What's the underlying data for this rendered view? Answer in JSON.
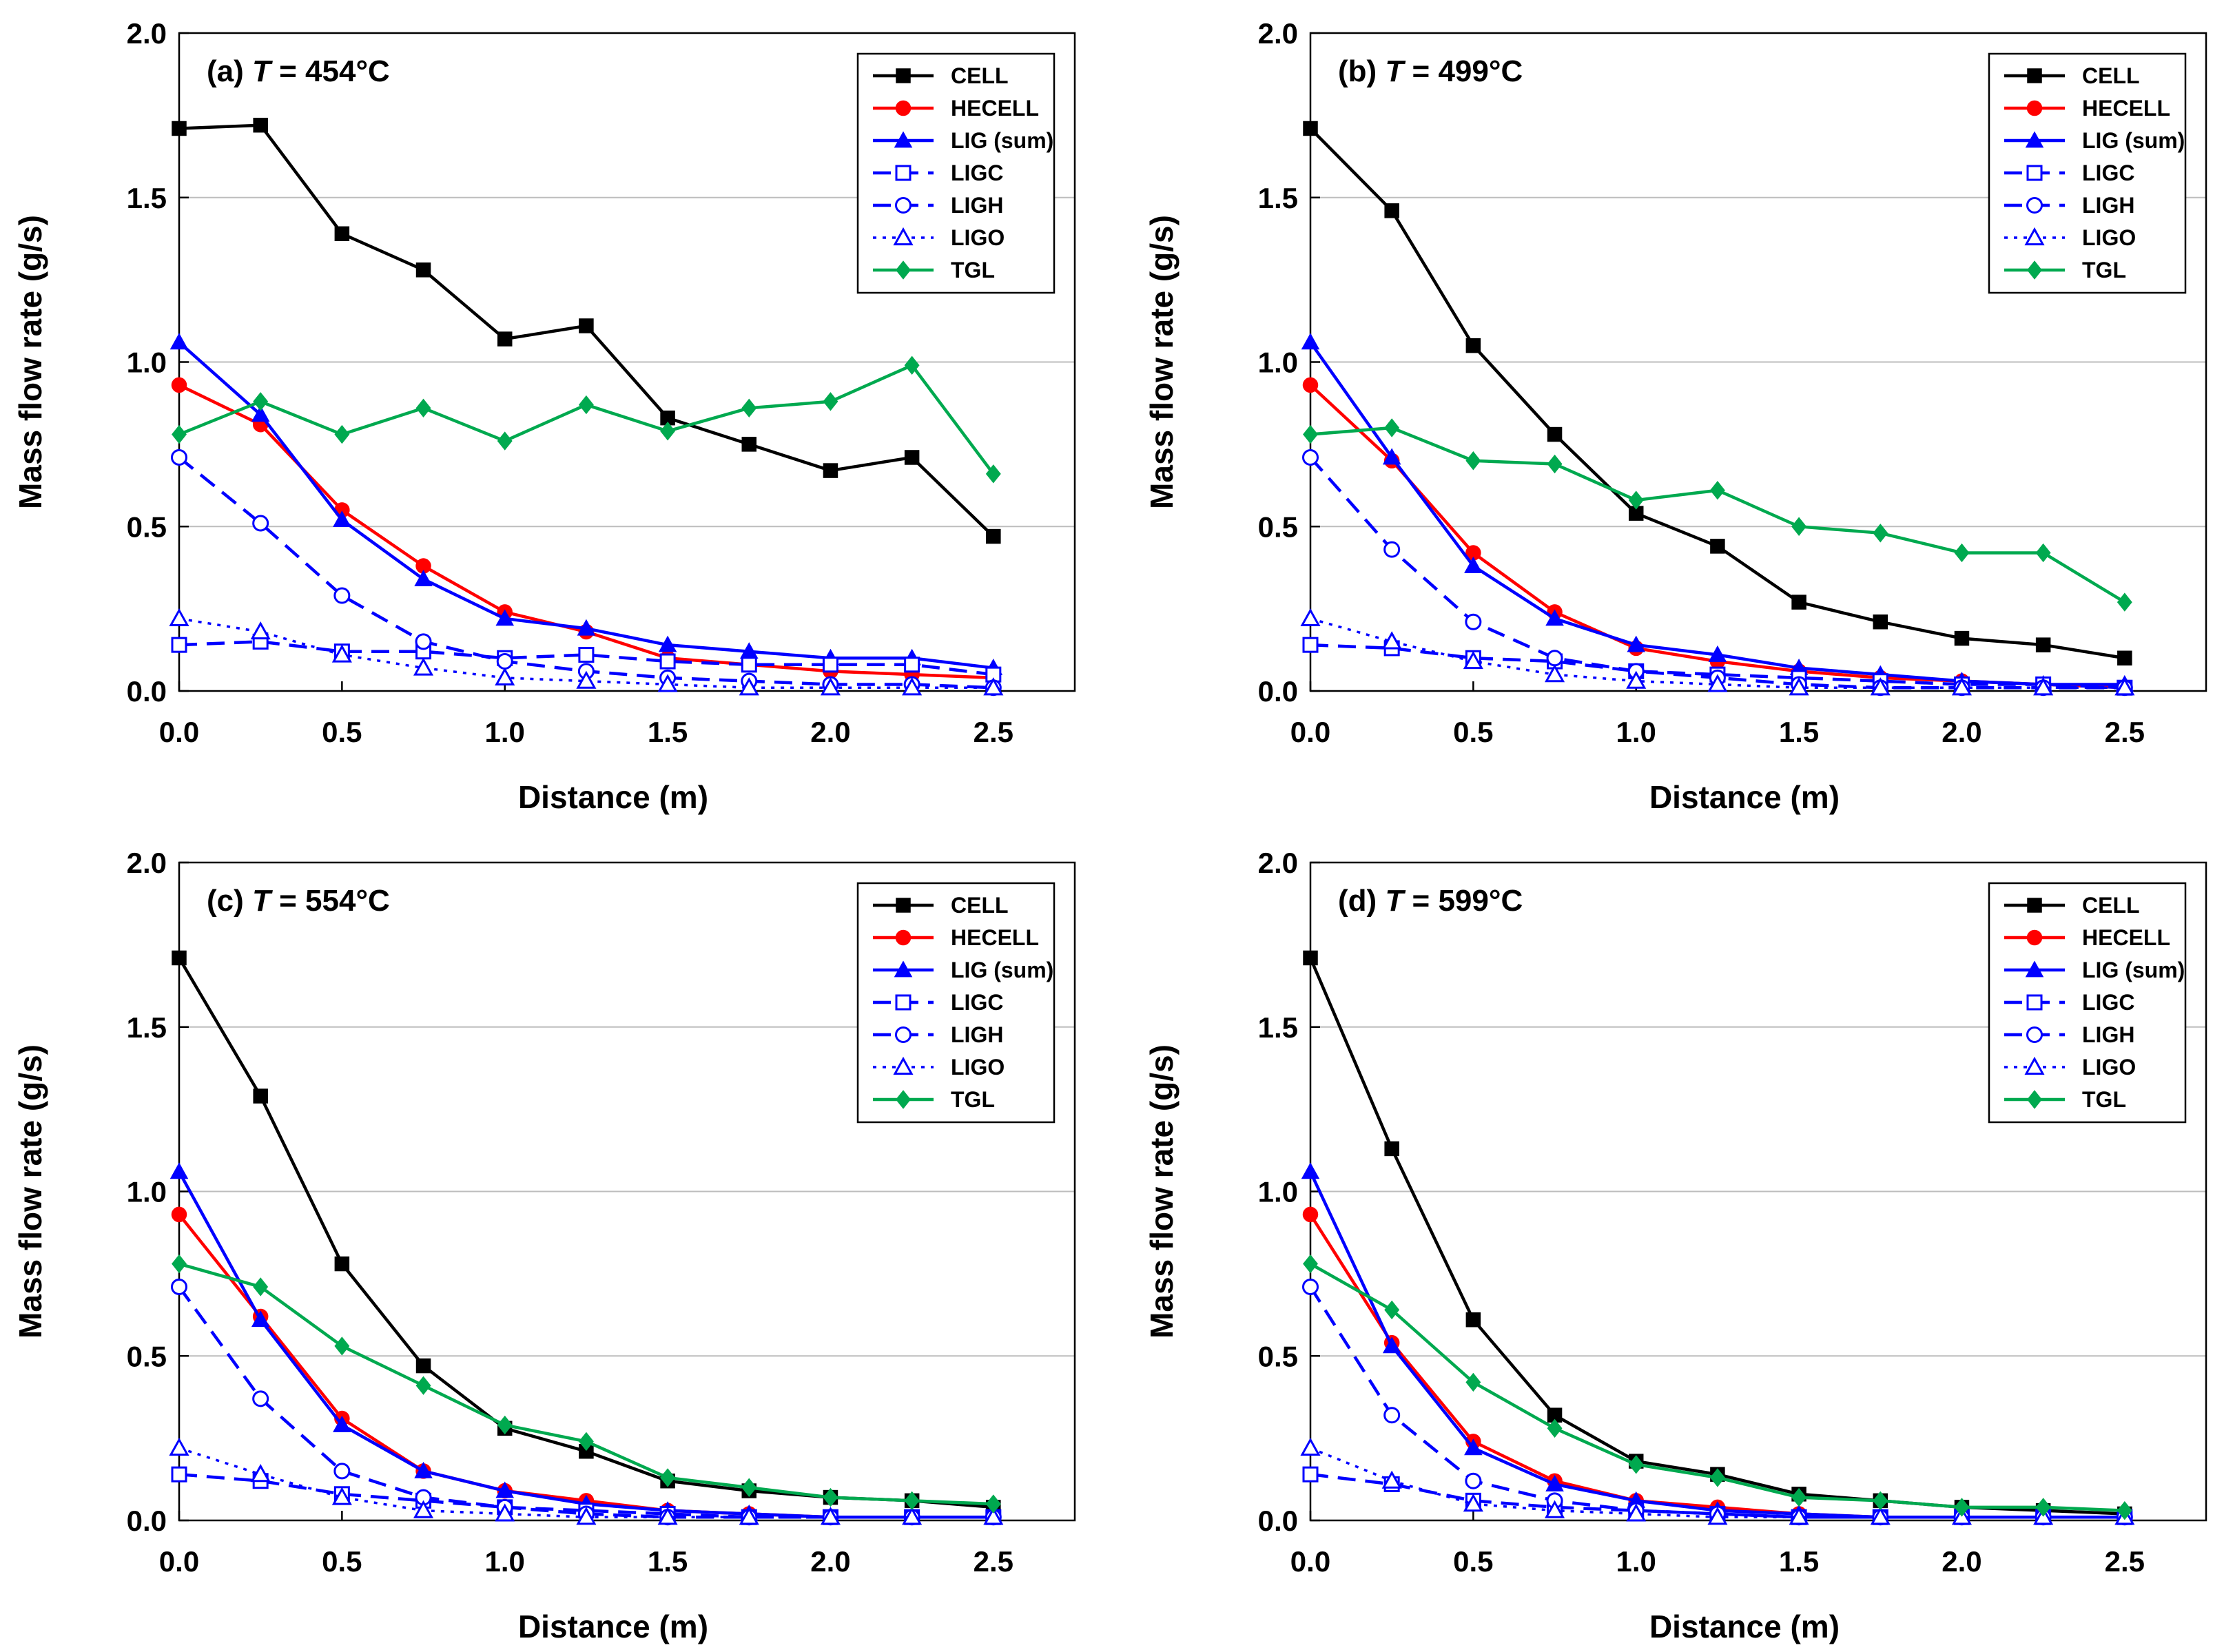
{
  "chart_data": [
    {
      "type": "line",
      "title_prefix": "(a) ",
      "title_var": "T",
      "title_suffix": " = 454°C",
      "xlabel": "Distance (m)",
      "ylabel": "Mass flow rate (g/s)",
      "xlim": [
        0,
        2.75
      ],
      "ylim": [
        0,
        2.0
      ],
      "xticks": [
        "0.0",
        "0.5",
        "1.0",
        "1.5",
        "2.0",
        "2.5"
      ],
      "yticks": [
        "0.0",
        "0.5",
        "1.0",
        "1.5",
        "2.0"
      ],
      "grid": "horizontal",
      "legend_position": "top-right",
      "x": [
        0,
        0.25,
        0.5,
        0.75,
        1.0,
        1.25,
        1.5,
        1.75,
        2.0,
        2.25,
        2.5
      ],
      "series": [
        {
          "name": "CELL",
          "values": [
            1.71,
            1.72,
            1.39,
            1.28,
            1.07,
            1.11,
            0.83,
            0.75,
            0.67,
            0.71,
            0.47
          ]
        },
        {
          "name": "HECELL",
          "values": [
            0.93,
            0.81,
            0.55,
            0.38,
            0.24,
            0.18,
            0.1,
            0.08,
            0.06,
            0.05,
            0.04
          ]
        },
        {
          "name": "LIG (sum)",
          "values": [
            1.06,
            0.84,
            0.52,
            0.34,
            0.22,
            0.19,
            0.14,
            0.12,
            0.1,
            0.1,
            0.07
          ]
        },
        {
          "name": "LIGC",
          "values": [
            0.14,
            0.15,
            0.12,
            0.12,
            0.1,
            0.11,
            0.09,
            0.08,
            0.08,
            0.08,
            0.05
          ]
        },
        {
          "name": "LIGH",
          "values": [
            0.71,
            0.51,
            0.29,
            0.15,
            0.09,
            0.06,
            0.04,
            0.03,
            0.02,
            0.02,
            0.01
          ]
        },
        {
          "name": "LIGO",
          "values": [
            0.22,
            0.18,
            0.11,
            0.07,
            0.04,
            0.03,
            0.02,
            0.01,
            0.01,
            0.01,
            0.01
          ]
        },
        {
          "name": "TGL",
          "values": [
            0.78,
            0.88,
            0.78,
            0.86,
            0.76,
            0.87,
            0.79,
            0.86,
            0.88,
            0.99,
            0.66
          ]
        }
      ]
    },
    {
      "type": "line",
      "title_prefix": "(b) ",
      "title_var": "T",
      "title_suffix": " = 499°C",
      "xlabel": "Distance (m)",
      "ylabel": "Mass flow rate (g/s)",
      "xlim": [
        0,
        2.75
      ],
      "ylim": [
        0,
        2.0
      ],
      "xticks": [
        "0.0",
        "0.5",
        "1.0",
        "1.5",
        "2.0",
        "2.5"
      ],
      "yticks": [
        "0.0",
        "0.5",
        "1.0",
        "1.5",
        "2.0"
      ],
      "grid": "horizontal",
      "legend_position": "top-right",
      "x": [
        0,
        0.25,
        0.5,
        0.75,
        1.0,
        1.25,
        1.5,
        1.75,
        2.0,
        2.25,
        2.5
      ],
      "series": [
        {
          "name": "CELL",
          "values": [
            1.71,
            1.46,
            1.05,
            0.78,
            0.54,
            0.44,
            0.27,
            0.21,
            0.16,
            0.14,
            0.1
          ]
        },
        {
          "name": "HECELL",
          "values": [
            0.93,
            0.7,
            0.42,
            0.24,
            0.13,
            0.09,
            0.06,
            0.04,
            0.03,
            0.02,
            0.01
          ]
        },
        {
          "name": "LIG (sum)",
          "values": [
            1.06,
            0.71,
            0.38,
            0.22,
            0.14,
            0.11,
            0.07,
            0.05,
            0.03,
            0.02,
            0.02
          ]
        },
        {
          "name": "LIGC",
          "values": [
            0.14,
            0.13,
            0.1,
            0.09,
            0.06,
            0.05,
            0.04,
            0.03,
            0.02,
            0.02,
            0.01
          ]
        },
        {
          "name": "LIGH",
          "values": [
            0.71,
            0.43,
            0.21,
            0.1,
            0.06,
            0.04,
            0.02,
            0.01,
            0.01,
            0.01,
            0.01
          ]
        },
        {
          "name": "LIGO",
          "values": [
            0.22,
            0.15,
            0.09,
            0.05,
            0.03,
            0.02,
            0.01,
            0.01,
            0.01,
            0.01,
            0.01
          ]
        },
        {
          "name": "TGL",
          "values": [
            0.78,
            0.8,
            0.7,
            0.69,
            0.58,
            0.61,
            0.5,
            0.48,
            0.42,
            0.42,
            0.27
          ]
        }
      ]
    },
    {
      "type": "line",
      "title_prefix": "(c) ",
      "title_var": "T",
      "title_suffix": " = 554°C",
      "xlabel": "Distance (m)",
      "ylabel": "Mass flow rate (g/s)",
      "xlim": [
        0,
        2.75
      ],
      "ylim": [
        0,
        2.0
      ],
      "xticks": [
        "0.0",
        "0.5",
        "1.0",
        "1.5",
        "2.0",
        "2.5"
      ],
      "yticks": [
        "0.0",
        "0.5",
        "1.0",
        "1.5",
        "2.0"
      ],
      "grid": "horizontal",
      "legend_position": "top-right",
      "x": [
        0,
        0.25,
        0.5,
        0.75,
        1.0,
        1.25,
        1.5,
        1.75,
        2.0,
        2.25,
        2.5
      ],
      "series": [
        {
          "name": "CELL",
          "values": [
            1.71,
            1.29,
            0.78,
            0.47,
            0.28,
            0.21,
            0.12,
            0.09,
            0.07,
            0.06,
            0.04
          ]
        },
        {
          "name": "HECELL",
          "values": [
            0.93,
            0.62,
            0.31,
            0.15,
            0.09,
            0.06,
            0.03,
            0.02,
            0.01,
            0.01,
            0.01
          ]
        },
        {
          "name": "LIG (sum)",
          "values": [
            1.06,
            0.61,
            0.29,
            0.15,
            0.09,
            0.05,
            0.03,
            0.02,
            0.01,
            0.01,
            0.01
          ]
        },
        {
          "name": "LIGC",
          "values": [
            0.14,
            0.12,
            0.08,
            0.06,
            0.04,
            0.03,
            0.02,
            0.01,
            0.01,
            0.01,
            0.01
          ]
        },
        {
          "name": "LIGH",
          "values": [
            0.71,
            0.37,
            0.15,
            0.07,
            0.04,
            0.02,
            0.01,
            0.01,
            0.01,
            0.01,
            0.01
          ]
        },
        {
          "name": "LIGO",
          "values": [
            0.22,
            0.14,
            0.07,
            0.03,
            0.02,
            0.01,
            0.01,
            0.01,
            0.01,
            0.01,
            0.01
          ]
        },
        {
          "name": "TGL",
          "values": [
            0.78,
            0.71,
            0.53,
            0.41,
            0.29,
            0.24,
            0.13,
            0.1,
            0.07,
            0.06,
            0.05
          ]
        }
      ]
    },
    {
      "type": "line",
      "title_prefix": "(d) ",
      "title_var": "T",
      "title_suffix": " = 599°C",
      "xlabel": "Distance (m)",
      "ylabel": "Mass flow rate (g/s)",
      "xlim": [
        0,
        2.75
      ],
      "ylim": [
        0,
        2.0
      ],
      "xticks": [
        "0.0",
        "0.5",
        "1.0",
        "1.5",
        "2.0",
        "2.5"
      ],
      "yticks": [
        "0.0",
        "0.5",
        "1.0",
        "1.5",
        "2.0"
      ],
      "grid": "horizontal",
      "legend_position": "top-right",
      "x": [
        0,
        0.25,
        0.5,
        0.75,
        1.0,
        1.25,
        1.5,
        1.75,
        2.0,
        2.25,
        2.5
      ],
      "series": [
        {
          "name": "CELL",
          "values": [
            1.71,
            1.13,
            0.61,
            0.32,
            0.18,
            0.14,
            0.08,
            0.06,
            0.04,
            0.03,
            0.02
          ]
        },
        {
          "name": "HECELL",
          "values": [
            0.93,
            0.54,
            0.24,
            0.12,
            0.06,
            0.04,
            0.02,
            0.01,
            0.01,
            0.01,
            0.01
          ]
        },
        {
          "name": "LIG (sum)",
          "values": [
            1.06,
            0.53,
            0.22,
            0.11,
            0.06,
            0.03,
            0.02,
            0.01,
            0.01,
            0.01,
            0.01
          ]
        },
        {
          "name": "LIGC",
          "values": [
            0.14,
            0.11,
            0.06,
            0.04,
            0.03,
            0.02,
            0.01,
            0.01,
            0.01,
            0.01,
            0.01
          ]
        },
        {
          "name": "LIGH",
          "values": [
            0.71,
            0.32,
            0.12,
            0.06,
            0.03,
            0.02,
            0.01,
            0.01,
            0.01,
            0.01,
            0.01
          ]
        },
        {
          "name": "LIGO",
          "values": [
            0.22,
            0.12,
            0.05,
            0.03,
            0.02,
            0.01,
            0.01,
            0.01,
            0.01,
            0.01,
            0.01
          ]
        },
        {
          "name": "TGL",
          "values": [
            0.78,
            0.64,
            0.42,
            0.28,
            0.17,
            0.13,
            0.07,
            0.06,
            0.04,
            0.04,
            0.03
          ]
        }
      ]
    }
  ],
  "series_styles": [
    {
      "name": "CELL",
      "color": "#000000",
      "marker": "square",
      "filled": true,
      "dash": "solid"
    },
    {
      "name": "HECELL",
      "color": "#ff0000",
      "marker": "circle",
      "filled": true,
      "dash": "solid"
    },
    {
      "name": "LIG (sum)",
      "color": "#0000ff",
      "marker": "triangle",
      "filled": true,
      "dash": "solid"
    },
    {
      "name": "LIGC",
      "color": "#0000ff",
      "marker": "square",
      "filled": false,
      "dash": "dashed"
    },
    {
      "name": "LIGH",
      "color": "#0000ff",
      "marker": "circle",
      "filled": false,
      "dash": "dashed"
    },
    {
      "name": "LIGO",
      "color": "#0000ff",
      "marker": "triangle",
      "filled": false,
      "dash": "dotted"
    },
    {
      "name": "TGL",
      "color": "#00a94f",
      "marker": "diamond",
      "filled": true,
      "dash": "solid"
    }
  ]
}
